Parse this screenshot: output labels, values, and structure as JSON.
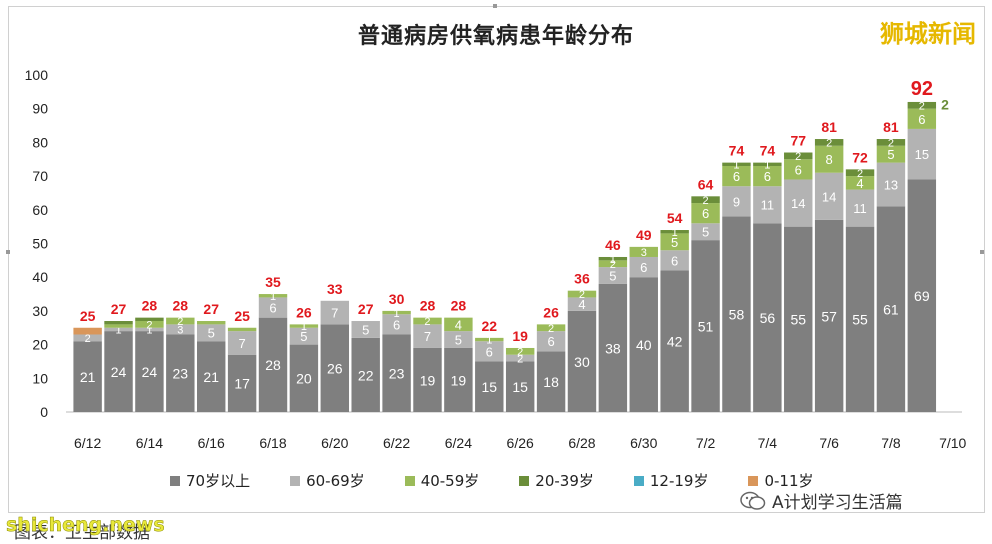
{
  "chart_data": {
    "type": "bar",
    "title": "普通病房供氧病患年龄分布",
    "ylim": [
      0,
      100
    ],
    "yticks": [
      0,
      10,
      20,
      30,
      40,
      50,
      60,
      70,
      80,
      90,
      100
    ],
    "x_tick_labels": [
      "6/12",
      "6/14",
      "6/16",
      "6/18",
      "6/20",
      "6/22",
      "6/24",
      "6/26",
      "6/28",
      "6/30",
      "7/2",
      "7/4",
      "7/6",
      "7/8",
      "7/10"
    ],
    "categories": [
      "6/12",
      "6/13",
      "6/14",
      "6/15",
      "6/16",
      "6/17",
      "6/18",
      "6/19",
      "6/20",
      "6/21",
      "6/22",
      "6/23",
      "6/24",
      "6/25",
      "6/26",
      "6/27",
      "6/28",
      "6/29",
      "6/30",
      "7/1",
      "7/2",
      "7/3",
      "7/4",
      "7/5",
      "7/6",
      "7/7",
      "7/8",
      "7/9"
    ],
    "totals": [
      25,
      27,
      28,
      28,
      27,
      25,
      35,
      26,
      33,
      27,
      30,
      28,
      28,
      22,
      19,
      26,
      36,
      46,
      49,
      54,
      64,
      74,
      74,
      77,
      81,
      72,
      81,
      92
    ],
    "series": [
      {
        "name": "70岁以上",
        "color": "#7f7f7f",
        "values": [
          21,
          24,
          24,
          23,
          21,
          17,
          28,
          20,
          26,
          22,
          23,
          19,
          19,
          15,
          15,
          18,
          30,
          38,
          40,
          42,
          51,
          58,
          56,
          55,
          57,
          55,
          61,
          69
        ]
      },
      {
        "name": "60-69岁",
        "color": "#b3b3b3",
        "values": [
          2,
          1,
          1,
          3,
          5,
          7,
          6,
          5,
          7,
          5,
          6,
          7,
          5,
          6,
          2,
          6,
          4,
          5,
          6,
          6,
          5,
          9,
          11,
          14,
          14,
          11,
          13,
          15
        ]
      },
      {
        "name": "40-59岁",
        "color": "#9bbb59",
        "values": [
          0,
          1,
          2,
          2,
          1,
          1,
          1,
          1,
          0,
          0,
          1,
          2,
          4,
          1,
          2,
          2,
          2,
          2,
          3,
          5,
          6,
          6,
          6,
          6,
          8,
          4,
          5,
          6
        ]
      },
      {
        "name": "20-39岁",
        "color": "#6b8e3a",
        "values": [
          0,
          1,
          1,
          0,
          0,
          0,
          0,
          0,
          0,
          0,
          0,
          0,
          0,
          0,
          0,
          0,
          0,
          1,
          0,
          1,
          2,
          1,
          1,
          2,
          2,
          2,
          2,
          2
        ]
      },
      {
        "name": "12-19岁",
        "color": "#4aacc6",
        "values": [
          0,
          0,
          0,
          0,
          0,
          0,
          0,
          0,
          0,
          0,
          0,
          0,
          0,
          0,
          0,
          0,
          0,
          0,
          0,
          0,
          0,
          0,
          0,
          0,
          0,
          0,
          0,
          0
        ]
      },
      {
        "name": "0-11岁",
        "color": "#d9965a",
        "values": [
          2,
          0,
          0,
          0,
          0,
          0,
          0,
          0,
          0,
          0,
          0,
          0,
          0,
          0,
          0,
          0,
          0,
          0,
          0,
          0,
          0,
          0,
          0,
          0,
          0,
          0,
          0,
          0
        ]
      }
    ],
    "segment_labels": [
      [
        21,
        2,
        null,
        null,
        null,
        null
      ],
      [
        24,
        1,
        null,
        null,
        null,
        null
      ],
      [
        24,
        1,
        2,
        null,
        null,
        null
      ],
      [
        23,
        3,
        2,
        null,
        null,
        null
      ],
      [
        21,
        5,
        null,
        null,
        null,
        null
      ],
      [
        17,
        7,
        null,
        null,
        null,
        null
      ],
      [
        28,
        6,
        1,
        null,
        null,
        null
      ],
      [
        20,
        5,
        1,
        null,
        null,
        null
      ],
      [
        26,
        7,
        null,
        null,
        null,
        null
      ],
      [
        22,
        5,
        null,
        null,
        null,
        null
      ],
      [
        23,
        6,
        1,
        null,
        null,
        null
      ],
      [
        19,
        7,
        2,
        null,
        null,
        null
      ],
      [
        19,
        5,
        4,
        null,
        null,
        null
      ],
      [
        15,
        6,
        1,
        null,
        null,
        null
      ],
      [
        15,
        2,
        2,
        null,
        null,
        null
      ],
      [
        18,
        6,
        2,
        null,
        null,
        null
      ],
      [
        30,
        4,
        2,
        null,
        null,
        null
      ],
      [
        38,
        5,
        2,
        1,
        null,
        null
      ],
      [
        40,
        6,
        3,
        null,
        null,
        null
      ],
      [
        42,
        6,
        5,
        1,
        null,
        null
      ],
      [
        51,
        5,
        6,
        2,
        null,
        null
      ],
      [
        58,
        9,
        6,
        1,
        null,
        null
      ],
      [
        56,
        11,
        6,
        1,
        null,
        null
      ],
      [
        55,
        14,
        6,
        2,
        null,
        null
      ],
      [
        57,
        14,
        8,
        2,
        null,
        null
      ],
      [
        55,
        11,
        4,
        2,
        null,
        null
      ],
      [
        61,
        13,
        5,
        2,
        null,
        null
      ],
      [
        69,
        15,
        6,
        2,
        null,
        null
      ]
    ],
    "last_small_label": "2",
    "legend_position": "bottom",
    "grid": false
  },
  "header": {
    "brand": "狮城新闻"
  },
  "footer": {
    "wechat_account": "A计划学习生活篇",
    "footnote": "图表：卫生部数据",
    "watermark": "shicheng.news"
  },
  "colors": {
    "total_label": "#e0191e",
    "axis": "#555555"
  }
}
